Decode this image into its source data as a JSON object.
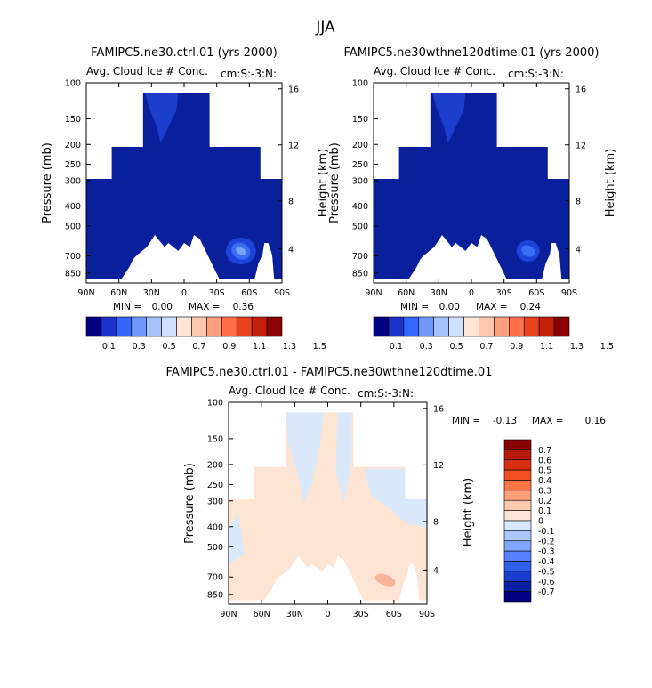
{
  "page_title": "JJA",
  "chart_data": [
    {
      "type": "heatmap",
      "title": "FAMIPC5.ne30.ctrl.01 (yrs 2000)",
      "subtitle": "Avg. Cloud Ice # Conc.",
      "units": "cm:S:-3:N:",
      "ylabel": "Pressure (mb)",
      "y2label": "Height (km)",
      "x_ticks": [
        "90N",
        "60N",
        "30N",
        "0",
        "30S",
        "60S",
        "90S"
      ],
      "y_ticks": [
        "100",
        "150",
        "200",
        "250",
        "300",
        "400",
        "500",
        "700",
        "850"
      ],
      "y2_ticks": [
        "16",
        "12",
        "8",
        "4"
      ],
      "stats": {
        "min_label": "MIN =",
        "min": "0.00",
        "max_label": "MAX =",
        "max": "0.36"
      },
      "colorbar_levels": [
        "0.1",
        "0.3",
        "0.5",
        "0.7",
        "0.9",
        "1.1",
        "1.3",
        "1.5"
      ],
      "dominant_value_range": [
        0,
        0.1
      ],
      "local_max_region": "around 700 mb, 60S"
    },
    {
      "type": "heatmap",
      "title": "FAMIPC5.ne30wthne120dtime.01 (yrs 2000)",
      "subtitle": "Avg. Cloud Ice # Conc.",
      "units": "cm:S:-3:N:",
      "ylabel": "Pressure (mb)",
      "y2label": "Height (km)",
      "x_ticks": [
        "90N",
        "60N",
        "30N",
        "0",
        "30S",
        "60S",
        "90S"
      ],
      "y_ticks": [
        "100",
        "150",
        "200",
        "250",
        "300",
        "400",
        "500",
        "700",
        "850"
      ],
      "y2_ticks": [
        "16",
        "12",
        "8",
        "4"
      ],
      "stats": {
        "min_label": "MIN =",
        "min": "0.00",
        "max_label": "MAX =",
        "max": "0.24"
      },
      "colorbar_levels": [
        "0.1",
        "0.3",
        "0.5",
        "0.7",
        "0.9",
        "1.1",
        "1.3",
        "1.5"
      ],
      "dominant_value_range": [
        0,
        0.1
      ]
    },
    {
      "type": "heatmap",
      "title": "FAMIPC5.ne30.ctrl.01 - FAMIPC5.ne30wthne120dtime.01",
      "subtitle": "Avg. Cloud Ice # Conc.",
      "units": "cm:S:-3:N:",
      "ylabel": "Pressure (mb)",
      "y2label": "Height (km)",
      "x_ticks": [
        "90N",
        "60N",
        "30N",
        "0",
        "30S",
        "60S",
        "90S"
      ],
      "y_ticks": [
        "100",
        "150",
        "200",
        "250",
        "300",
        "400",
        "500",
        "700",
        "850"
      ],
      "y2_ticks": [
        "16",
        "12",
        "8",
        "4"
      ],
      "stats": {
        "min_label": "MIN =",
        "min": "-0.13",
        "max_label": "MAX =",
        "max": "0.16"
      },
      "colorbar_levels": [
        "0.7",
        "0.6",
        "0.5",
        "0.4",
        "0.3",
        "0.2",
        "0.1",
        "0",
        "-0.1",
        "-0.2",
        "-0.3",
        "-0.4",
        "-0.5",
        "-0.6",
        "-0.7"
      ],
      "dominant_value_range": [
        -0.1,
        0.1
      ]
    }
  ],
  "colors": {
    "abs_scale": [
      "#000080",
      "#1a33c8",
      "#3366ff",
      "#6f97ff",
      "#a6c1ff",
      "#cfe0ff",
      "#ffe6d5",
      "#ffc8ad",
      "#ff9e7d",
      "#ff6f4a",
      "#e8421c",
      "#c4200a",
      "#8b0000"
    ],
    "diff_scale": [
      "#8b0000",
      "#b51a0a",
      "#d83012",
      "#f04f23",
      "#ff7644",
      "#ffa07b",
      "#ffc9ae",
      "#fde6d8",
      "#d6e8ff",
      "#aac8ff",
      "#7ea6ff",
      "#5580ff",
      "#305fe8",
      "#1a3fcc",
      "#0a20a0",
      "#000080"
    ],
    "ice_field": "#0a1f9c",
    "ice_light": "#1f47d8",
    "diff_pos": "#fde4d3",
    "diff_neg": "#d9e9fb"
  }
}
